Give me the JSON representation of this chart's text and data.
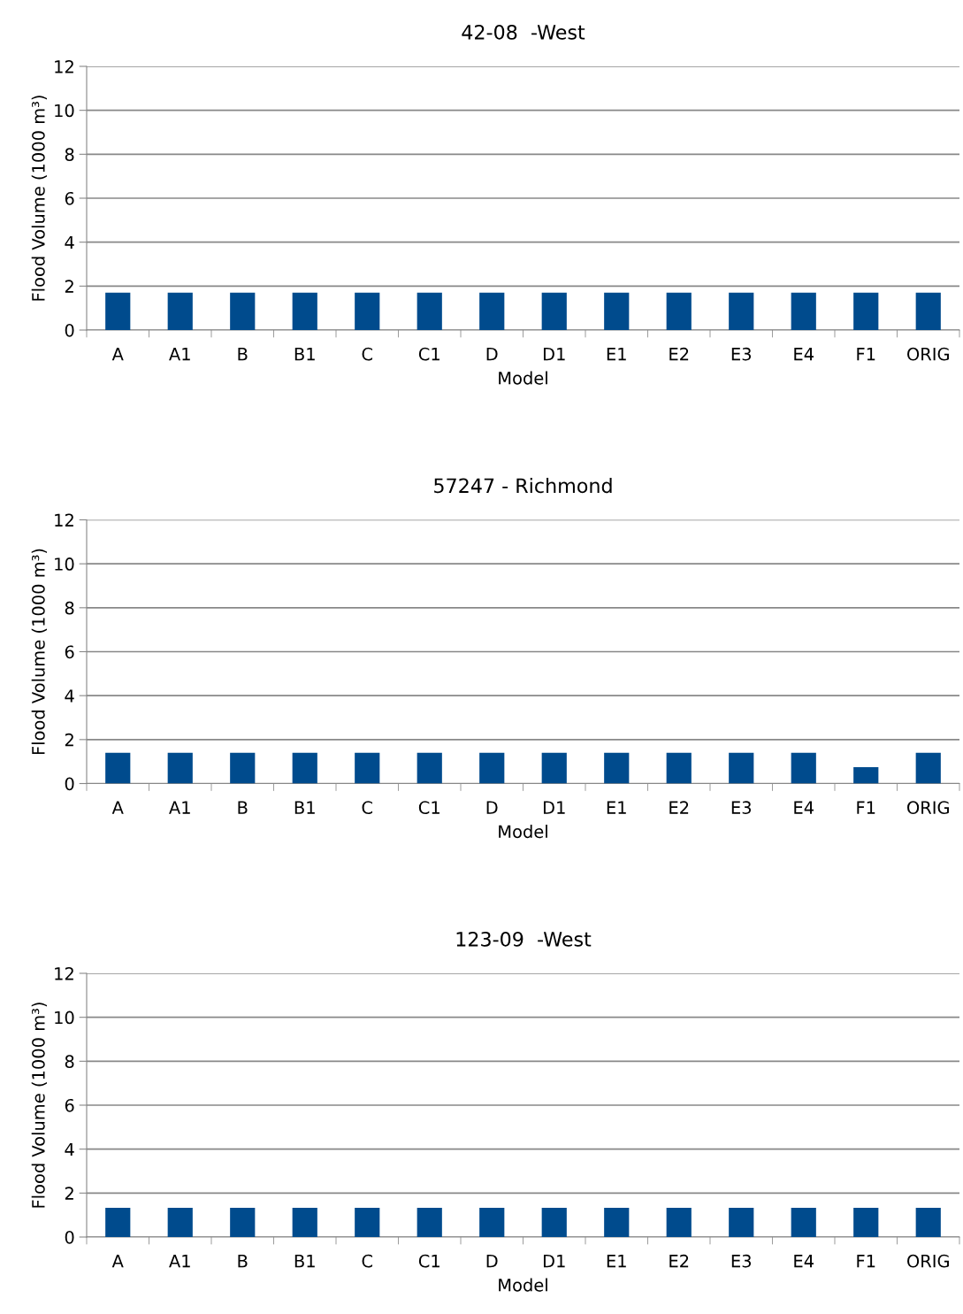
{
  "chart_data": [
    {
      "type": "bar",
      "title": "42-08  -West",
      "xlabel": "Model",
      "ylabel": "Flood Volume (1000 m³)",
      "categories": [
        "A",
        "A1",
        "B",
        "B1",
        "C",
        "C1",
        "D",
        "D1",
        "E1",
        "E2",
        "E3",
        "E4",
        "F1",
        "ORIG"
      ],
      "values": [
        1.7,
        1.7,
        1.7,
        1.7,
        1.7,
        1.7,
        1.7,
        1.7,
        1.7,
        1.7,
        1.7,
        1.7,
        1.7,
        1.7
      ],
      "color": "#004b8d",
      "ylim": [
        0,
        12
      ],
      "yticks": [
        0,
        2,
        4,
        6,
        8,
        10,
        12
      ],
      "grid": "y"
    },
    {
      "type": "bar",
      "title": "57247 - Richmond",
      "xlabel": "Model",
      "ylabel": "Flood Volume (1000 m³)",
      "categories": [
        "A",
        "A1",
        "B",
        "B1",
        "C",
        "C1",
        "D",
        "D1",
        "E1",
        "E2",
        "E3",
        "E4",
        "F1",
        "ORIG"
      ],
      "values": [
        1.4,
        1.4,
        1.4,
        1.4,
        1.4,
        1.4,
        1.4,
        1.4,
        1.4,
        1.4,
        1.4,
        1.4,
        0.74,
        1.4
      ],
      "color": "#004b8d",
      "ylim": [
        0,
        12
      ],
      "yticks": [
        0,
        2,
        4,
        6,
        8,
        10,
        12
      ],
      "grid": "y"
    },
    {
      "type": "bar",
      "title": "123-09  -West",
      "xlabel": "Model",
      "ylabel": "Flood Volume (1000 m³)",
      "categories": [
        "A",
        "A1",
        "B",
        "B1",
        "C",
        "C1",
        "D",
        "D1",
        "E1",
        "E2",
        "E3",
        "E4",
        "F1",
        "ORIG"
      ],
      "values": [
        1.33,
        1.33,
        1.33,
        1.33,
        1.33,
        1.33,
        1.33,
        1.33,
        1.33,
        1.33,
        1.33,
        1.33,
        1.33,
        1.33
      ],
      "color": "#004b8d",
      "ylim": [
        0,
        12
      ],
      "yticks": [
        0,
        2,
        4,
        6,
        8,
        10,
        12
      ],
      "grid": "y"
    }
  ]
}
